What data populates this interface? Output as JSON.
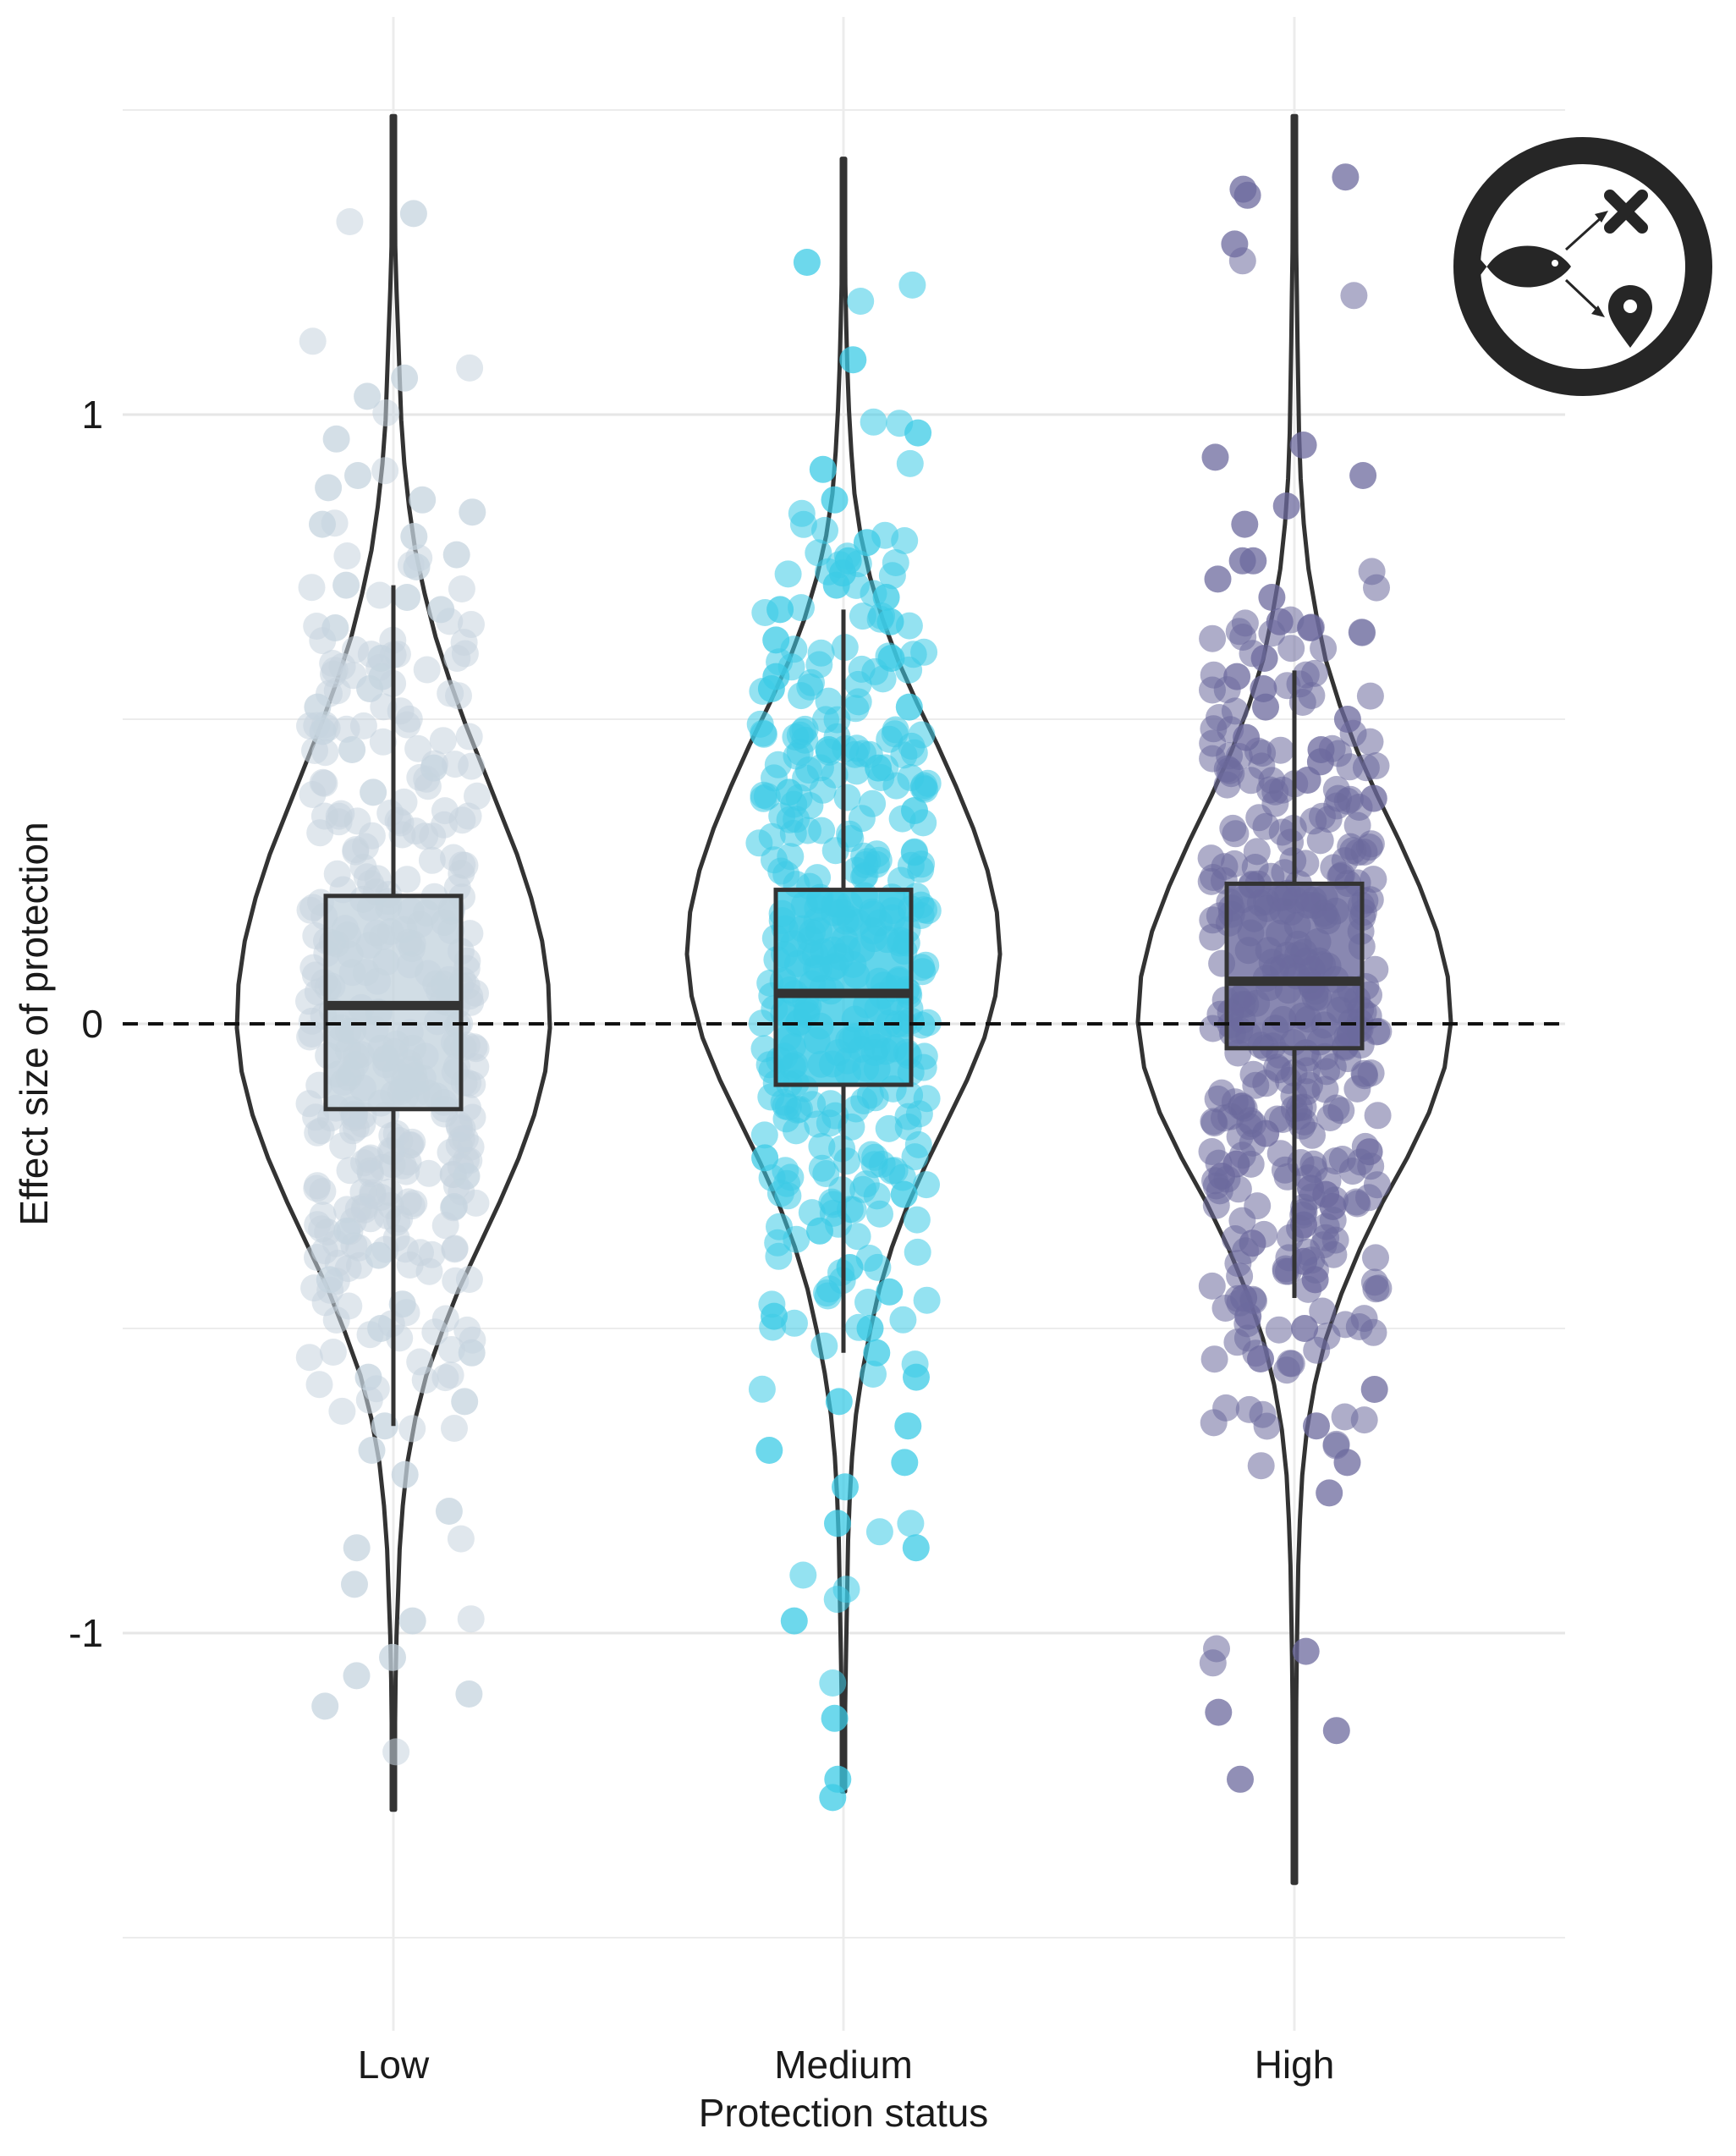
{
  "chart_data": {
    "type": "violin",
    "title": "",
    "xlabel": "Protection status",
    "ylabel": "Effect size of protection",
    "categories": [
      "Low",
      "Medium",
      "High"
    ],
    "yticks": [
      -1,
      0,
      1
    ],
    "ytick_labels": [
      "-1",
      "0",
      "1"
    ],
    "ylim": [
      -1.5,
      1.5
    ],
    "grid": "on",
    "reference_line": {
      "y": 0,
      "style": "dashed"
    },
    "series": [
      {
        "category": "Low",
        "color": "#c6d4df",
        "box": {
          "whisker_low": -0.66,
          "q1": -0.14,
          "median": 0.03,
          "q3": 0.21,
          "whisker_high": 0.72
        },
        "violin_range": [
          -1.29,
          1.49
        ],
        "violin_peak": 0.04,
        "violin_halfwidth": [
          0.0,
          0.004,
          0.008,
          0.012,
          0.02,
          0.03,
          0.04,
          0.05,
          0.07,
          0.1,
          0.14,
          0.2,
          0.27,
          0.36,
          0.46,
          0.57,
          0.68,
          0.79,
          0.88,
          0.95,
          0.99,
          1.0,
          0.97,
          0.9,
          0.8,
          0.68,
          0.55,
          0.42,
          0.31,
          0.21,
          0.14,
          0.09,
          0.06,
          0.04,
          0.03,
          0.02,
          0.014,
          0.009,
          0.005,
          0.0
        ],
        "outlier_points": [
          1.33,
          1.06,
          1.03,
          0.96,
          0.9,
          0.88,
          0.86,
          0.84,
          0.82,
          0.8,
          0.77,
          0.75,
          0.72,
          0.7,
          0.68,
          0.65,
          0.6,
          0.57,
          0.55,
          0.52,
          0.48,
          0.45,
          0.42,
          0.38,
          -0.25,
          -0.3,
          -0.34,
          -0.38,
          -0.42,
          -0.46,
          -0.5,
          -0.54,
          -0.58,
          -0.62,
          -0.66,
          -0.7,
          -0.74,
          -0.8,
          -0.86,
          -0.92,
          -0.98,
          -1.04,
          -1.07,
          -1.1,
          -1.12
        ]
      },
      {
        "category": "Medium",
        "color": "#3ccbe6",
        "box": {
          "whisker_low": -0.54,
          "q1": -0.1,
          "median": 0.05,
          "q3": 0.22,
          "whisker_high": 0.68
        },
        "violin_range": [
          -1.26,
          1.42
        ],
        "violin_peak": 0.04,
        "violin_halfwidth": [
          0.0,
          0.004,
          0.008,
          0.012,
          0.018,
          0.025,
          0.035,
          0.05,
          0.07,
          0.11,
          0.17,
          0.25,
          0.35,
          0.47,
          0.6,
          0.72,
          0.83,
          0.92,
          0.98,
          1.0,
          0.97,
          0.9,
          0.79,
          0.66,
          0.53,
          0.41,
          0.31,
          0.23,
          0.17,
          0.12,
          0.08,
          0.055,
          0.04,
          0.03,
          0.025,
          0.02,
          0.015,
          0.01,
          0.005,
          0.0
        ],
        "outlier_points": [
          1.25,
          1.09,
          0.97,
          0.91,
          0.86,
          0.79,
          0.76,
          0.74,
          0.72,
          0.7,
          0.68,
          0.66,
          0.63,
          0.6,
          0.57,
          0.55,
          0.52,
          0.45,
          0.42,
          0.38,
          0.35,
          -0.22,
          -0.28,
          -0.34,
          -0.4,
          -0.44,
          -0.48,
          -0.5,
          -0.54,
          -0.58,
          -0.62,
          -0.66,
          -0.7,
          -0.72,
          -0.76,
          -0.82,
          -0.86,
          -0.98,
          -1.14,
          -1.24,
          -1.27
        ]
      },
      {
        "category": "High",
        "color": "#6c6a9d",
        "box": {
          "whisker_low": -0.45,
          "q1": -0.04,
          "median": 0.07,
          "q3": 0.23,
          "whisker_high": 0.58
        },
        "violin_range": [
          -1.41,
          1.49
        ],
        "violin_peak": 0.05,
        "violin_halfwidth": [
          0.0,
          0.004,
          0.008,
          0.012,
          0.016,
          0.02,
          0.025,
          0.03,
          0.04,
          0.06,
          0.09,
          0.14,
          0.2,
          0.29,
          0.4,
          0.53,
          0.67,
          0.8,
          0.91,
          0.98,
          1.0,
          0.96,
          0.86,
          0.72,
          0.56,
          0.42,
          0.3,
          0.2,
          0.13,
          0.08,
          0.05,
          0.035,
          0.025,
          0.02,
          0.015,
          0.012,
          0.009,
          0.006,
          0.003,
          0.0
        ],
        "outlier_points": [
          1.39,
          1.37,
          1.36,
          1.28,
          0.93,
          0.95,
          0.9,
          0.85,
          0.82,
          0.76,
          0.76,
          0.73,
          0.7,
          0.65,
          0.66,
          0.6,
          0.57,
          0.55,
          0.52,
          0.5,
          0.47,
          0.45,
          0.43,
          0.4,
          0.37,
          -0.18,
          -0.21,
          -0.23,
          -0.25,
          -0.27,
          -0.28,
          -0.3,
          -0.33,
          -0.36,
          -0.39,
          -0.42,
          -0.45,
          -0.48,
          -0.5,
          -0.55,
          -0.6,
          -0.66,
          -0.72,
          -0.77,
          -1.03,
          -1.13,
          -1.16,
          -1.24
        ]
      }
    ]
  },
  "icon": {
    "name": "fish-outcome-icon",
    "stroke_color": "#262626"
  }
}
